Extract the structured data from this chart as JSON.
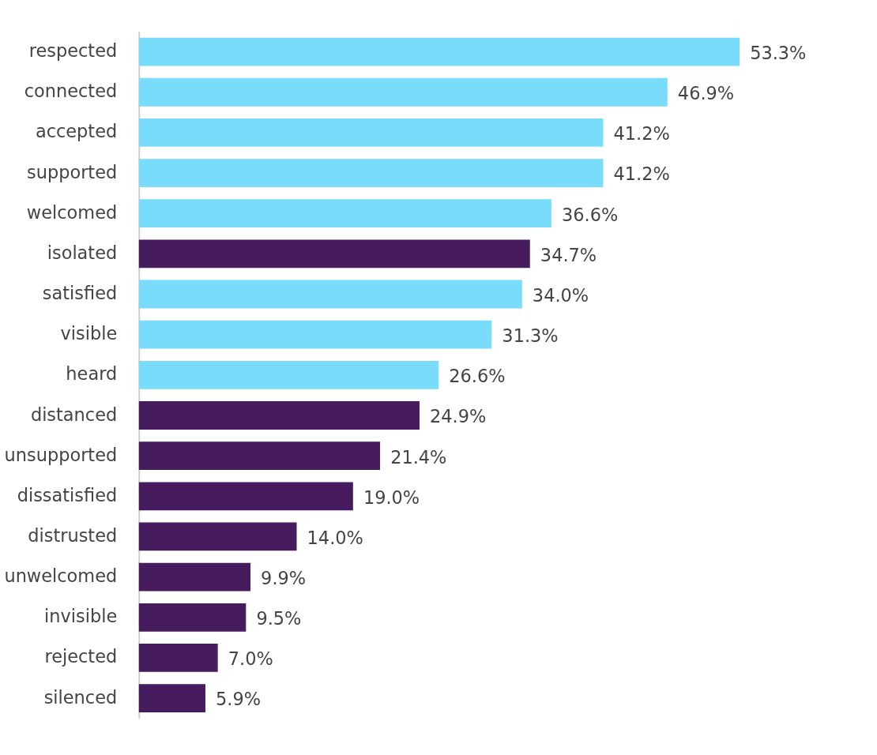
{
  "chart_data": {
    "type": "bar",
    "orientation": "horizontal",
    "categories": [
      "respected",
      "connected",
      "accepted",
      "supported",
      "welcomed",
      "isolated",
      "satisfied",
      "visible",
      "heard",
      "distanced",
      "unsupported",
      "dissatisfied",
      "distrusted",
      "unwelcomed",
      "invisible",
      "rejected",
      "silenced"
    ],
    "values": [
      53.3,
      46.9,
      41.2,
      41.2,
      36.6,
      34.7,
      34.0,
      31.3,
      26.6,
      24.9,
      21.4,
      19.0,
      14.0,
      9.9,
      9.5,
      7.0,
      5.9
    ],
    "value_labels": [
      "53.3%",
      "46.9%",
      "41.2%",
      "41.2%",
      "36.6%",
      "34.7%",
      "34.0%",
      "31.3%",
      "26.6%",
      "24.9%",
      "21.4%",
      "19.0%",
      "14.0%",
      "9.9%",
      "9.5%",
      "7.0%",
      "5.9%"
    ],
    "colors": [
      "#7adcfb",
      "#7adcfb",
      "#7adcfb",
      "#7adcfb",
      "#7adcfb",
      "#461c5f",
      "#7adcfb",
      "#7adcfb",
      "#7adcfb",
      "#461c5f",
      "#461c5f",
      "#461c5f",
      "#461c5f",
      "#461c5f",
      "#461c5f",
      "#461c5f",
      "#461c5f"
    ]
  }
}
